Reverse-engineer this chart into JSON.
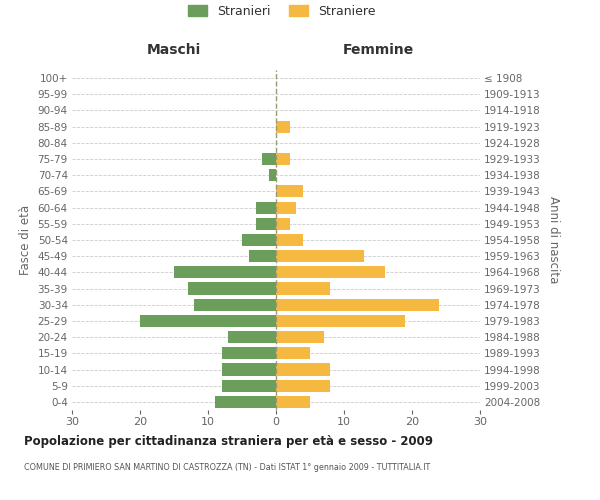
{
  "age_groups": [
    "0-4",
    "5-9",
    "10-14",
    "15-19",
    "20-24",
    "25-29",
    "30-34",
    "35-39",
    "40-44",
    "45-49",
    "50-54",
    "55-59",
    "60-64",
    "65-69",
    "70-74",
    "75-79",
    "80-84",
    "85-89",
    "90-94",
    "95-99",
    "100+"
  ],
  "birth_years": [
    "2004-2008",
    "1999-2003",
    "1994-1998",
    "1989-1993",
    "1984-1988",
    "1979-1983",
    "1974-1978",
    "1969-1973",
    "1964-1968",
    "1959-1963",
    "1954-1958",
    "1949-1953",
    "1944-1948",
    "1939-1943",
    "1934-1938",
    "1929-1933",
    "1924-1928",
    "1919-1923",
    "1914-1918",
    "1909-1913",
    "≤ 1908"
  ],
  "males": [
    9,
    8,
    8,
    8,
    7,
    20,
    12,
    13,
    15,
    4,
    5,
    3,
    3,
    0,
    1,
    2,
    0,
    0,
    0,
    0,
    0
  ],
  "females": [
    5,
    8,
    8,
    5,
    7,
    19,
    24,
    8,
    16,
    13,
    4,
    2,
    3,
    4,
    0,
    2,
    0,
    2,
    0,
    0,
    0
  ],
  "male_color": "#6a9e5a",
  "female_color": "#f5b942",
  "grid_color": "#cccccc",
  "center_line_color": "#999977",
  "title": "Popolazione per cittadinanza straniera per età e sesso - 2009",
  "subtitle": "COMUNE DI PRIMIERO SAN MARTINO DI CASTROZZA (TN) - Dati ISTAT 1° gennaio 2009 - TUTTITALIA.IT",
  "ylabel_left": "Fasce di età",
  "ylabel_right": "Anni di nascita",
  "header_left": "Maschi",
  "header_right": "Femmine",
  "legend_males": "Stranieri",
  "legend_females": "Straniere",
  "xlim": 30,
  "bg_color": "#ffffff",
  "text_color": "#666666",
  "header_color": "#333333"
}
